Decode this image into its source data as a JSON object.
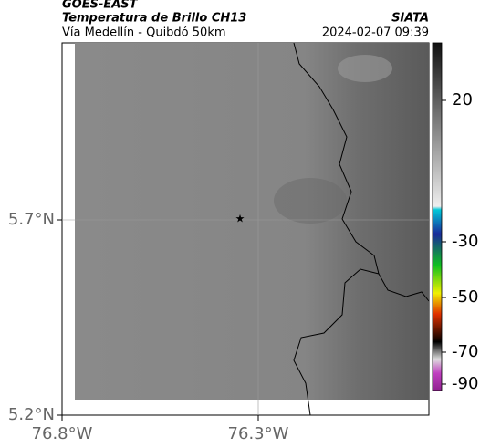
{
  "header": {
    "title": "GOES-EAST",
    "subtitle": "Temperatura de Brillo CH13",
    "route": "Vía Medellín - Quibdó 50km",
    "source": "SIATA",
    "timestamp": "2024-02-07 09:39"
  },
  "map": {
    "lat_labels": [
      "5.7°N",
      "5.2°N"
    ],
    "lon_labels": [
      "76.8°W",
      "76.3°W"
    ]
  },
  "colorbar": {
    "ticks": [
      20,
      -30,
      -50,
      -70,
      -90
    ]
  }
}
